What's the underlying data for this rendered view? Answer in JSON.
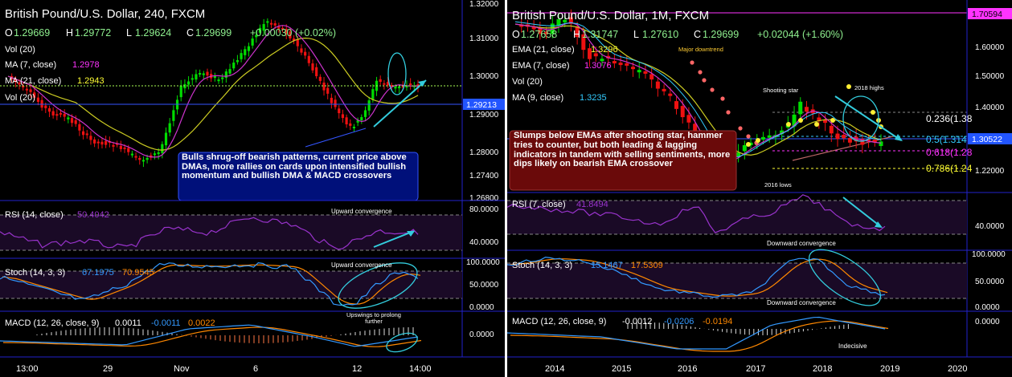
{
  "left": {
    "header": {
      "title": "British Pound/U.S. Dollar, 240, FXCM",
      "ohlc": [
        {
          "k": "O",
          "v": "1.29669"
        },
        {
          "k": "H",
          "v": "1.29772"
        },
        {
          "k": "L",
          "v": "1.29624"
        },
        {
          "k": "C",
          "v": "1.29699"
        }
      ],
      "change": "+0.00030 (+0.02%)"
    },
    "indicators": [
      {
        "label": "Vol (20)",
        "value": "",
        "color": "#ffffff"
      },
      {
        "label": "MA (7, close)",
        "value": "1.2978",
        "color": "#ff33ff"
      },
      {
        "label": "MA (21, close)",
        "value": "1.2943",
        "color": "#ffff33"
      },
      {
        "label": "Vol (20)",
        "value": "",
        "color": "#ffffff"
      }
    ],
    "price_axis": [
      "1.32000",
      "1.31000",
      "1.30000",
      "1.29000",
      "1.28000",
      "1.27400",
      "1.26800"
    ],
    "current_price": "1.29213",
    "annotation": "Bulls shrug-off bearish patterns, current price above DMAs, more rallies on cards upon intensified bullish momentum and bullish DMA & MACD crossovers",
    "rsi": {
      "label": "RSI (14, close)",
      "value": "50.4042",
      "note": "Upward convergence",
      "axis": [
        "80.0000",
        "40.0000"
      ]
    },
    "stoch": {
      "label": "Stoch (14, 3, 3)",
      "k": "67.1975",
      "d": "70.9545",
      "note": "Upward convergence",
      "axis": [
        "100.0000",
        "50.0000",
        "0.0000"
      ]
    },
    "macd": {
      "label": "MACD (12, 26, close, 9)",
      "v1": "0.0011",
      "v2": "-0.0011",
      "v3": "0.0022",
      "note": "Upswings to prolong further",
      "axis": [
        "0.0000"
      ]
    },
    "time_axis": [
      "13:00",
      "29",
      "Nov",
      "6",
      "12",
      "14:00"
    ]
  },
  "right": {
    "header": {
      "title": "British Pound/U.S. Dollar, 1M, FXCM",
      "ohlc": [
        {
          "k": "O",
          "v": "1.27658"
        },
        {
          "k": "H",
          "v": "1.31747"
        },
        {
          "k": "L",
          "v": "1.27610"
        },
        {
          "k": "C",
          "v": "1.29699"
        }
      ],
      "change": "+0.02044 (+1.60%)"
    },
    "indicators": [
      {
        "label": "EMA (21, close)",
        "value": "1.3296",
        "color": "#ffff33"
      },
      {
        "label": "EMA (7, close)",
        "value": "1.3076",
        "color": "#ff33ff"
      },
      {
        "label": "Vol (20)",
        "value": "",
        "color": "#ffffff"
      },
      {
        "label": "MA (9, close)",
        "value": "1.3235",
        "color": "#33ccff"
      }
    ],
    "price_axis": [
      "1.70594",
      "1.60000",
      "1.50000",
      "1.40000",
      "1.30522",
      "1.22000"
    ],
    "current_price": "1.30522",
    "fib_levels": [
      {
        "label": "0.236(1.38",
        "color": "#ffffff"
      },
      {
        "label": "0.5(1.314",
        "color": "#33ccff"
      },
      {
        "label": "0.618(1.28",
        "color": "#ff33ff"
      },
      {
        "label": "0.786(1.24",
        "color": "#ffff33"
      }
    ],
    "notes": [
      "Major downtrend",
      "Shooting star",
      "2018 highs",
      "2016 lows"
    ],
    "annotation": "Slumps below EMAs after shooting star, hammer tries to counter, but both leading & lagging indicators in tandem with selling sentiments, more dips likely on bearish EMA crossover",
    "rsi": {
      "label": "RSI (7, close)",
      "value": "41.8494",
      "note": "Downward convergence",
      "axis": [
        "40.0000"
      ]
    },
    "stoch": {
      "label": "Stoch (14, 3, 3)",
      "k": "15.1467",
      "d": "17.5309",
      "note": "Downward convergence",
      "axis": [
        "100.0000",
        "50.0000",
        "0.0000"
      ]
    },
    "macd": {
      "label": "MACD (12, 26, close, 9)",
      "v1": "-0.0012",
      "v2": "-0.0206",
      "v3": "-0.0194",
      "note": "Indecisive",
      "axis": [
        "0.0000"
      ]
    },
    "time_axis": [
      "2014",
      "2015",
      "2016",
      "2017",
      "2018",
      "2019",
      "2020"
    ]
  },
  "colors": {
    "bull": "#00dd00",
    "bear": "#ee1111",
    "grid": "#0000cc",
    "ma_fast": "#cc33cc",
    "ma_slow": "#cccc22",
    "cyan": "#33ccdd",
    "blue_line": "#3399ff",
    "orange_line": "#ff8800",
    "subpanel_bg": "#1a0a26"
  }
}
